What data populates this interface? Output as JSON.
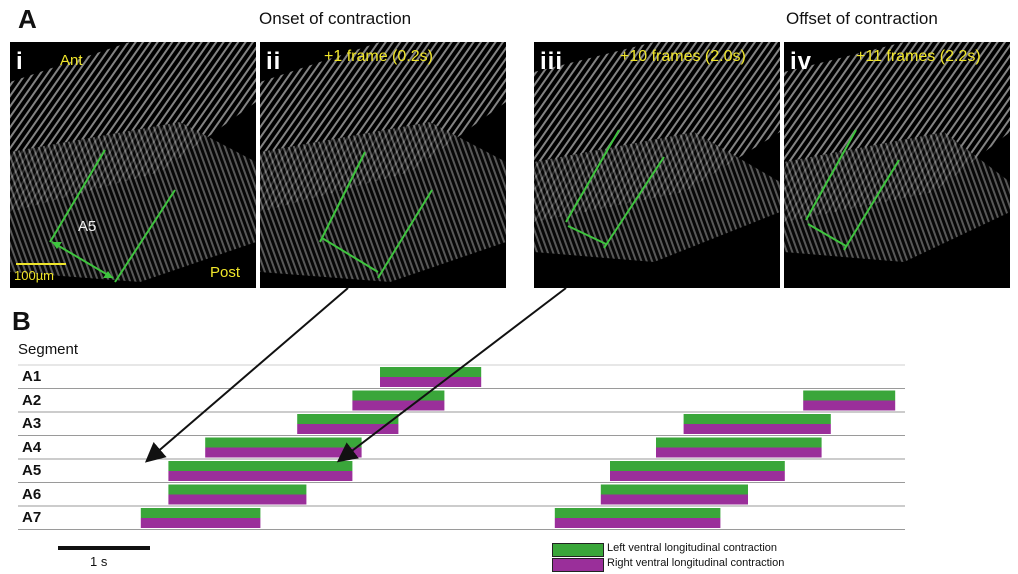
{
  "panel_a": {
    "letter": "A",
    "onset_title": "Onset of contraction",
    "offset_title": "Offset of contraction",
    "images": [
      {
        "numeral": "i",
        "labels": {
          "ant": "Ant",
          "segment": "A5",
          "scale": "100µm",
          "post": "Post"
        }
      },
      {
        "numeral": "ii",
        "caption": "+1 frame (0.2s)"
      },
      {
        "numeral": "iii",
        "caption": "+10 frames (2.0s)"
      },
      {
        "numeral": "iv",
        "caption": "+11 frames (2.2s)"
      }
    ]
  },
  "panel_b": {
    "letter": "B",
    "y_title": "Segment",
    "scale_label": "1 s",
    "legend": [
      {
        "label": "Left ventral longitudinal contraction",
        "color": "#3aa63a"
      },
      {
        "label": "Right ventral longitudinal contraction",
        "color": "#9a2f9a"
      }
    ]
  },
  "chart_data": {
    "type": "bar",
    "title": "",
    "xlabel": "",
    "ylabel": "Segment",
    "x_unit": "s",
    "xlim": [
      0,
      9.1
    ],
    "categories": [
      "A1",
      "A2",
      "A3",
      "A4",
      "A5",
      "A6",
      "A7"
    ],
    "series": [
      {
        "name": "Left ventral longitudinal contraction",
        "color": "#3aa63a",
        "intervals": [
          {
            "segment": "A1",
            "start": 3.5,
            "end": 4.6
          },
          {
            "segment": "A2",
            "start": 3.2,
            "end": 4.2
          },
          {
            "segment": "A2",
            "start": 8.1,
            "end": 9.1
          },
          {
            "segment": "A3",
            "start": 2.6,
            "end": 3.7
          },
          {
            "segment": "A3",
            "start": 6.8,
            "end": 8.4
          },
          {
            "segment": "A4",
            "start": 1.6,
            "end": 3.3
          },
          {
            "segment": "A4",
            "start": 6.5,
            "end": 8.3
          },
          {
            "segment": "A5",
            "start": 1.2,
            "end": 3.2
          },
          {
            "segment": "A5",
            "start": 6.0,
            "end": 7.9
          },
          {
            "segment": "A6",
            "start": 1.2,
            "end": 2.7
          },
          {
            "segment": "A6",
            "start": 5.9,
            "end": 7.5
          },
          {
            "segment": "A7",
            "start": 0.9,
            "end": 2.2
          },
          {
            "segment": "A7",
            "start": 5.4,
            "end": 7.2
          }
        ]
      },
      {
        "name": "Right ventral longitudinal contraction",
        "color": "#9a2f9a",
        "intervals": [
          {
            "segment": "A1",
            "start": 3.5,
            "end": 4.6
          },
          {
            "segment": "A2",
            "start": 3.2,
            "end": 4.2
          },
          {
            "segment": "A2",
            "start": 8.1,
            "end": 9.1
          },
          {
            "segment": "A3",
            "start": 2.6,
            "end": 3.7
          },
          {
            "segment": "A3",
            "start": 6.8,
            "end": 8.4
          },
          {
            "segment": "A4",
            "start": 1.6,
            "end": 3.3
          },
          {
            "segment": "A4",
            "start": 6.5,
            "end": 8.3
          },
          {
            "segment": "A5",
            "start": 1.2,
            "end": 3.2
          },
          {
            "segment": "A5",
            "start": 6.0,
            "end": 7.9
          },
          {
            "segment": "A6",
            "start": 1.2,
            "end": 2.7
          },
          {
            "segment": "A6",
            "start": 5.9,
            "end": 7.5
          },
          {
            "segment": "A7",
            "start": 0.9,
            "end": 2.2
          },
          {
            "segment": "A7",
            "start": 5.4,
            "end": 7.2
          }
        ]
      }
    ],
    "scale_bar_seconds": 1
  }
}
